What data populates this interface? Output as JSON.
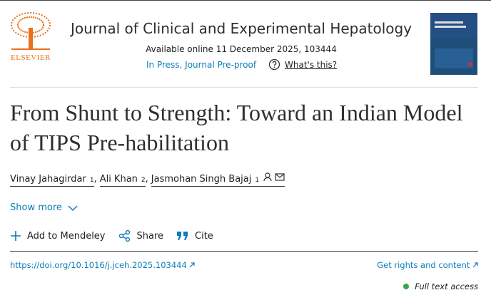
{
  "header": {
    "publisher": "ELSEVIER",
    "journal": "Journal of Clinical and Experimental Hepatology",
    "available": "Available online 11 December 2025, 103444",
    "status": "In Press, Journal Pre-proof",
    "whats_this": "What's this?"
  },
  "article": {
    "title": "From Shunt to Strength: Toward an Indian Model of TIPS Pre-habilitation",
    "authors": [
      {
        "name": "Vinay Jahagirdar",
        "sup": "1"
      },
      {
        "name": "Ali Khan",
        "sup": "2"
      },
      {
        "name": "Jasmohan Singh Bajaj",
        "sup": "1"
      }
    ],
    "author_separator": ",",
    "show_more": "Show more",
    "actions": [
      "Add to Mendeley",
      "Share",
      "Cite"
    ],
    "doi": "https://doi.org/10.1016/j.jceh.2025.103444",
    "rights": "Get rights and content",
    "access": "Full text access"
  }
}
